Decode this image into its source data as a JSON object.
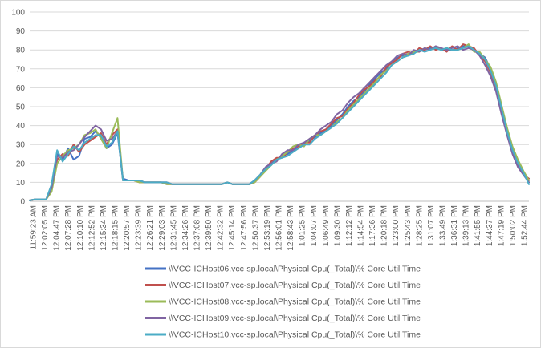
{
  "chart_data": {
    "type": "line",
    "title": "",
    "xlabel": "",
    "ylabel": "",
    "ylim": [
      0,
      100
    ],
    "yticks": [
      0,
      10,
      20,
      30,
      40,
      50,
      60,
      70,
      80,
      90,
      100
    ],
    "grid": "horizontal",
    "legend_position": "bottom",
    "x_tick_labels": [
      "11:59:23 AM",
      "12:02:05 PM",
      "12:04:47 PM",
      "12:07:28 PM",
      "12:10:10 PM",
      "12:12:52 PM",
      "12:15:34 PM",
      "12:18:15 PM",
      "12:20:57 PM",
      "12:23:39 PM",
      "12:26:21 PM",
      "12:29:03 PM",
      "12:31:45 PM",
      "12:34:26 PM",
      "12:37:08 PM",
      "12:39:50 PM",
      "12:42:32 PM",
      "12:45:14 PM",
      "12:47:56 PM",
      "12:50:37 PM",
      "12:53:19 PM",
      "12:56:01 PM",
      "12:58:43 PM",
      "1:01:25 PM",
      "1:04:07 PM",
      "1:06:49 PM",
      "1:09:30 PM",
      "1:12:12 PM",
      "1:14:54 PM",
      "1:17:36 PM",
      "1:20:18 PM",
      "1:23:00 PM",
      "1:25:43 PM",
      "1:28:25 PM",
      "1:31:07 PM",
      "1:33:49 PM",
      "1:36:31 PM",
      "1:39:13 PM",
      "1:41:55 PM",
      "1:44:37 PM",
      "1:47:19 PM",
      "1:50:02 PM",
      "1:52:44 PM"
    ],
    "series": [
      {
        "name": "\\\\VCC-ICHost06.vcc-sp.local\\Physical Cpu(_Total)\\% Core Util Time",
        "color": "#4472C4",
        "values": [
          0.5,
          1,
          1,
          1,
          8,
          25,
          22,
          28,
          22,
          24,
          33,
          34,
          37,
          34,
          28,
          30,
          36,
          12,
          11,
          11,
          11,
          10,
          10,
          10,
          10,
          10,
          9,
          9,
          9,
          9,
          9,
          9,
          9,
          9,
          9,
          9,
          10,
          9,
          9,
          9,
          9,
          11,
          14,
          18,
          20,
          22,
          24,
          25,
          27,
          28,
          30,
          32,
          34,
          36,
          38,
          40,
          43,
          46,
          50,
          53,
          55,
          58,
          62,
          65,
          68,
          70,
          74,
          76,
          77,
          78,
          79,
          80,
          80,
          81,
          81,
          80,
          80,
          80,
          81,
          82,
          82,
          80,
          78,
          76,
          70,
          62,
          50,
          38,
          28,
          20,
          15,
          10
        ]
      },
      {
        "name": "\\\\VCC-ICHost07.vcc-sp.local\\Physical Cpu(_Total)\\% Core Util Time",
        "color": "#C0504D",
        "values": [
          0.5,
          1,
          1,
          1,
          6,
          22,
          25,
          24,
          30,
          26,
          30,
          32,
          34,
          36,
          30,
          35,
          38,
          11,
          11,
          11,
          10,
          10,
          10,
          10,
          10,
          9,
          9,
          9,
          9,
          9,
          9,
          9,
          9,
          9,
          9,
          9,
          10,
          9,
          9,
          9,
          9,
          10,
          13,
          17,
          21,
          23,
          23,
          26,
          28,
          29,
          31,
          31,
          35,
          37,
          38,
          41,
          44,
          45,
          49,
          52,
          56,
          59,
          61,
          64,
          66,
          71,
          73,
          75,
          78,
          79,
          78,
          81,
          80,
          82,
          80,
          81,
          79,
          82,
          80,
          83,
          82,
          81,
          77,
          74,
          68,
          60,
          48,
          36,
          26,
          19,
          14,
          12
        ]
      },
      {
        "name": "\\\\VCC-ICHost08.vcc-sp.local\\Physical Cpu(_Total)\\% Core Util Time",
        "color": "#9BBB59",
        "values": [
          0.5,
          1,
          1,
          1,
          5,
          20,
          24,
          27,
          28,
          30,
          35,
          36,
          38,
          33,
          28,
          36,
          44,
          11,
          11,
          11,
          10,
          10,
          10,
          10,
          10,
          9,
          9,
          9,
          9,
          9,
          9,
          9,
          9,
          9,
          9,
          9,
          10,
          9,
          9,
          9,
          9,
          10,
          13,
          16,
          19,
          22,
          24,
          26,
          29,
          30,
          29,
          33,
          35,
          35,
          37,
          39,
          42,
          44,
          48,
          51,
          54,
          57,
          60,
          63,
          67,
          69,
          72,
          74,
          76,
          78,
          79,
          79,
          81,
          80,
          82,
          80,
          81,
          80,
          80,
          81,
          83,
          79,
          79,
          75,
          71,
          63,
          51,
          39,
          29,
          22,
          16,
          11
        ]
      },
      {
        "name": "\\\\VCC-ICHost09.vcc-sp.local\\Physical Cpu(_Total)\\% Core Util Time",
        "color": "#8064A2",
        "values": [
          0.5,
          1,
          1,
          1,
          7,
          24,
          23,
          26,
          27,
          30,
          34,
          37,
          40,
          38,
          32,
          33,
          37,
          11,
          11,
          11,
          11,
          10,
          10,
          10,
          10,
          10,
          9,
          9,
          9,
          9,
          9,
          9,
          9,
          9,
          9,
          9,
          10,
          9,
          9,
          9,
          9,
          11,
          14,
          18,
          20,
          21,
          25,
          27,
          27,
          30,
          31,
          33,
          35,
          38,
          40,
          42,
          46,
          48,
          52,
          55,
          57,
          60,
          63,
          66,
          69,
          72,
          74,
          77,
          78,
          77,
          80,
          79,
          81,
          80,
          82,
          81,
          80,
          81,
          82,
          80,
          81,
          80,
          77,
          72,
          66,
          58,
          46,
          35,
          25,
          18,
          14,
          10
        ]
      },
      {
        "name": "\\\\VCC-ICHost10.vcc-sp.local\\Physical Cpu(_Total)\\% Core Util Time",
        "color": "#4BACC6",
        "values": [
          0.5,
          1,
          1,
          1,
          9,
          27,
          21,
          25,
          29,
          27,
          31,
          33,
          35,
          35,
          29,
          31,
          37,
          11,
          11,
          11,
          11,
          10,
          10,
          10,
          10,
          10,
          9,
          9,
          9,
          9,
          9,
          9,
          9,
          9,
          9,
          9,
          10,
          9,
          9,
          9,
          9,
          11,
          14,
          17,
          19,
          22,
          23,
          24,
          26,
          28,
          30,
          30,
          33,
          35,
          37,
          39,
          41,
          44,
          47,
          50,
          53,
          56,
          59,
          62,
          65,
          68,
          72,
          74,
          76,
          77,
          78,
          80,
          79,
          80,
          81,
          80,
          81,
          80,
          80,
          81,
          82,
          80,
          78,
          75,
          69,
          61,
          49,
          37,
          27,
          20,
          15,
          9
        ]
      }
    ]
  }
}
